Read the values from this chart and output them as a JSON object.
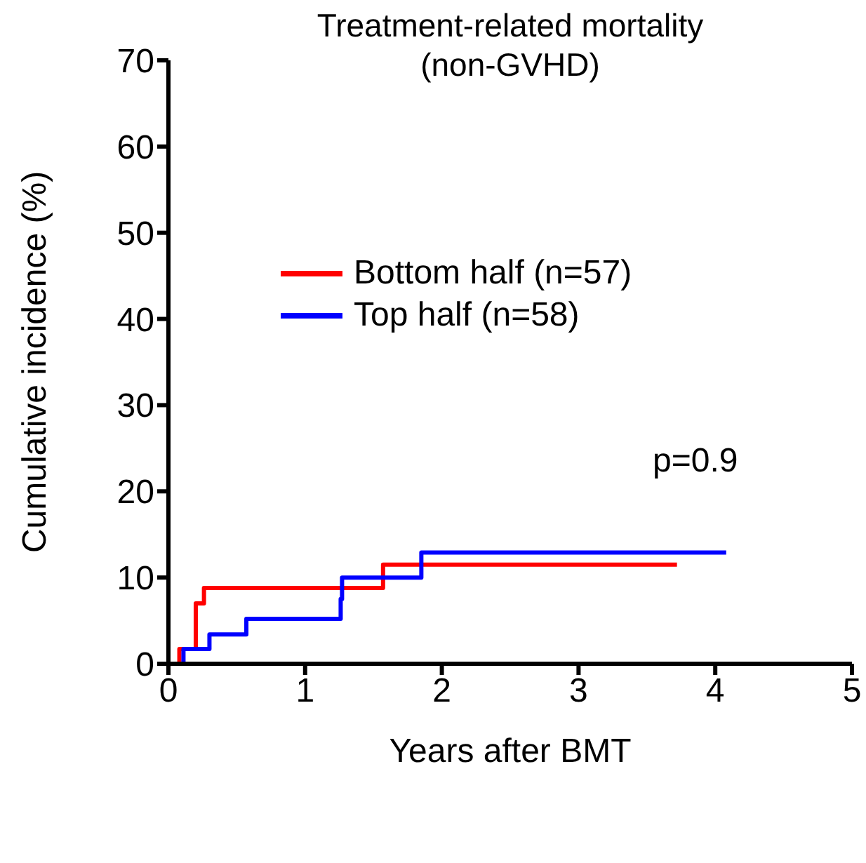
{
  "chart_data": {
    "type": "step",
    "title": "Treatment-related mortality",
    "subtitle": "(non-GVHD)",
    "xlabel": "Years after BMT",
    "ylabel": "Cumulative incidence (%)",
    "annotations": [
      "p=0.9"
    ],
    "xlim": [
      0,
      5
    ],
    "xticks": [
      0,
      1,
      2,
      3,
      4,
      5
    ],
    "ylim": [
      0,
      70
    ],
    "yticks": [
      0,
      10,
      20,
      30,
      40,
      50,
      60,
      70
    ],
    "grid": false,
    "legend": "top",
    "marker": "none",
    "line_style": "solid",
    "series": [
      {
        "name": "Bottom half (n=57)",
        "color": "#ff0000",
        "x": [
          0,
          0.08,
          0.2,
          0.26,
          1.57,
          3.72
        ],
        "values": [
          0,
          1.7,
          7.0,
          8.8,
          11.5,
          11.5
        ]
      },
      {
        "name": "Top half (n=58)",
        "color": "#0000ff",
        "x": [
          0,
          0.11,
          0.3,
          0.57,
          1.26,
          1.27,
          1.85,
          4.08
        ],
        "values": [
          0,
          1.7,
          3.4,
          5.2,
          7.5,
          10,
          12.9,
          12.9
        ]
      }
    ]
  }
}
